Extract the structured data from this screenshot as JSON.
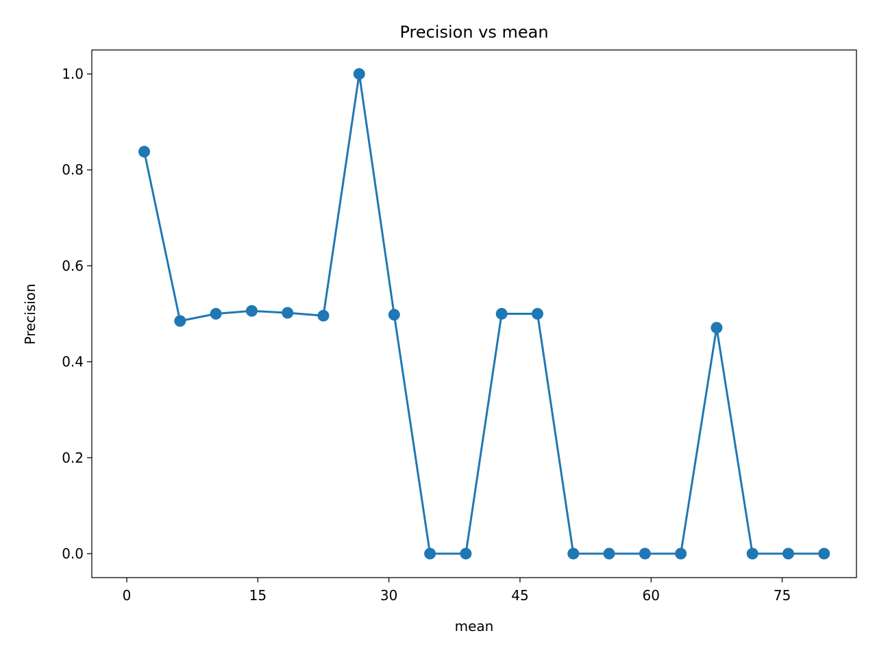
{
  "chart_data": {
    "type": "line",
    "title": "Precision vs mean",
    "xlabel": "mean",
    "ylabel": "Precision",
    "xlim": [
      -4.0,
      83.5
    ],
    "ylim": [
      -0.05,
      1.05
    ],
    "xticks": [
      0,
      15,
      30,
      45,
      60,
      75
    ],
    "yticks": [
      0.0,
      0.2,
      0.4,
      0.6,
      0.8,
      1.0
    ],
    "xtick_labels": [
      "0",
      "15",
      "30",
      "45",
      "60",
      "75"
    ],
    "ytick_labels": [
      "0.0",
      "0.2",
      "0.4",
      "0.6",
      "0.8",
      "1.0"
    ],
    "grid": false,
    "legend": "none",
    "series": [
      {
        "color": "#1f77b4",
        "marker": "circle",
        "x": [
          2.0,
          6.1,
          10.2,
          14.3,
          18.4,
          22.5,
          26.6,
          30.6,
          34.7,
          38.8,
          42.9,
          47.0,
          51.1,
          55.2,
          59.3,
          63.4,
          67.5,
          71.6,
          75.7,
          79.8
        ],
        "y": [
          0.838,
          0.485,
          0.5,
          0.506,
          0.502,
          0.496,
          1.0,
          0.498,
          0.0,
          0.0,
          0.5,
          0.5,
          0.0,
          0.0,
          0.0,
          0.0,
          0.471,
          0.0,
          0.0,
          0.0
        ]
      }
    ]
  }
}
